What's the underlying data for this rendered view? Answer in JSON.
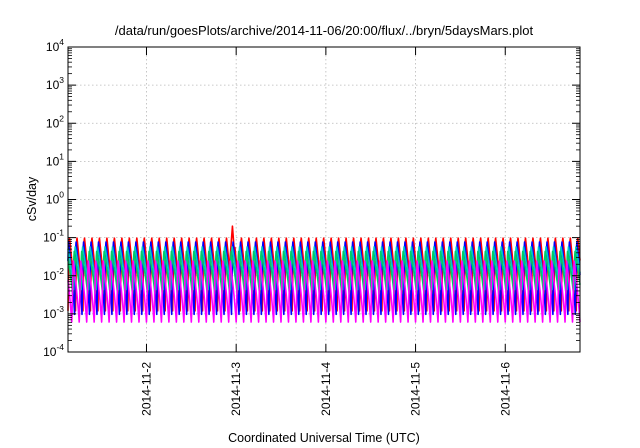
{
  "chart_data": {
    "type": "line",
    "title": "/data/run/goesPlots/archive/2014-11-06/20:00/flux/../bryn/5daysMars.plot",
    "xlabel": "Coordinated Universal Time (UTC)",
    "ylabel": "cSv/day",
    "yscale": "log",
    "ylim": [
      0.0001,
      10000
    ],
    "xlim": [
      "2014-11-01T03:00",
      "2014-11-06T20:00"
    ],
    "x_tick_labels": [
      "2014-11-2",
      "2014-11-3",
      "2014-11-4",
      "2014-11-5",
      "2014-11-6"
    ],
    "y_tick_labels": [
      {
        "base": "10",
        "exp": "-4"
      },
      {
        "base": "10",
        "exp": "-3"
      },
      {
        "base": "10",
        "exp": "-2"
      },
      {
        "base": "10",
        "exp": "-1"
      },
      {
        "base": "10",
        "exp": "0"
      },
      {
        "base": "10",
        "exp": "1"
      },
      {
        "base": "10",
        "exp": "2"
      },
      {
        "base": "10",
        "exp": "3"
      },
      {
        "base": "10",
        "exp": "4"
      }
    ],
    "grid": true,
    "oscillation_period_hours": 2,
    "series": [
      {
        "color": "#ff0000",
        "min": 0.0012,
        "max": 0.11
      },
      {
        "color": "#0000ff",
        "min": 0.0009,
        "max": 0.085
      },
      {
        "color": "#00c8c8",
        "min": 0.004,
        "max": 0.06
      },
      {
        "color": "#00cc66",
        "min": 0.003,
        "max": 0.045
      },
      {
        "color": "#ff00ff",
        "min": 0.0005,
        "max": 0.025
      }
    ],
    "spike": {
      "x": "2014-11-02T23:00",
      "y": 0.2
    }
  }
}
